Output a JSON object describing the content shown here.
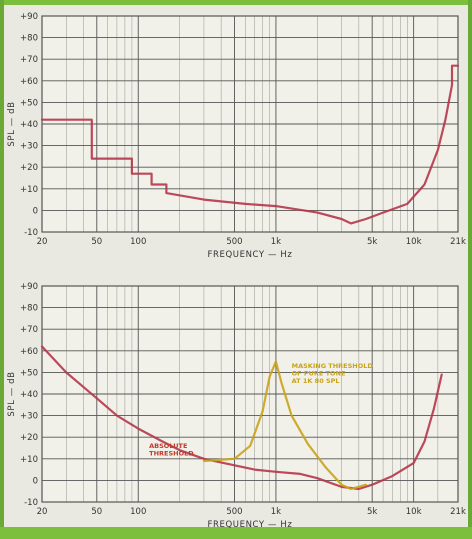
{
  "colors": {
    "grid": "#555555",
    "background": "#e9e9e2",
    "threshold_curve": "#b5364a",
    "masking_curve": "#c9a31a",
    "annotation": "#c9a31a",
    "label_red": "#c0392b",
    "frame_green": "#7bbf3c"
  },
  "chart_data": [
    {
      "type": "line",
      "xlabel": "FREQUENCY — Hz",
      "ylabel": "SPL — dB",
      "xscale": "log",
      "xlim": [
        20,
        21000
      ],
      "ylim": [
        -10,
        90
      ],
      "grid": true,
      "x_tick_labels": [
        {
          "value": 20,
          "label": "20"
        },
        {
          "value": 50,
          "label": "50"
        },
        {
          "value": 100,
          "label": "100"
        },
        {
          "value": 500,
          "label": "500"
        },
        {
          "value": 1000,
          "label": "1k"
        },
        {
          "value": 5000,
          "label": "5k"
        },
        {
          "value": 10000,
          "label": "10k"
        },
        {
          "value": 21000,
          "label": "21k"
        }
      ],
      "y_tick_labels": [
        {
          "value": 90,
          "label": "+90"
        },
        {
          "value": 80,
          "label": "+80"
        },
        {
          "value": 70,
          "label": "+70"
        },
        {
          "value": 60,
          "label": "+60"
        },
        {
          "value": 50,
          "label": "+50"
        },
        {
          "value": 40,
          "label": "+40"
        },
        {
          "value": 30,
          "label": "+30"
        },
        {
          "value": 20,
          "label": "+20"
        },
        {
          "value": 10,
          "label": "+10"
        },
        {
          "value": 0,
          "label": "0"
        },
        {
          "value": -10,
          "label": "-10"
        }
      ],
      "annotations": [],
      "series": [
        {
          "color": "#b5364a",
          "x": [
            20,
            46,
            46,
            90,
            90,
            125,
            125,
            160,
            160,
            300,
            600,
            1000,
            2000,
            3000,
            3500,
            4500,
            6000,
            9000,
            12000,
            15000,
            17000,
            19000,
            19000,
            21000
          ],
          "y": [
            42,
            42,
            24,
            24,
            17,
            17,
            12,
            12,
            8,
            5,
            3,
            2,
            -1,
            -4,
            -6,
            -4,
            -1,
            3,
            12,
            28,
            42,
            58,
            67,
            67
          ]
        }
      ]
    },
    {
      "type": "line",
      "xlabel": "FREQUENCY — Hz",
      "ylabel": "SPL — dB",
      "xscale": "log",
      "xlim": [
        20,
        21000
      ],
      "ylim": [
        -10,
        90
      ],
      "grid": true,
      "x_tick_labels": [
        {
          "value": 20,
          "label": "20"
        },
        {
          "value": 50,
          "label": "50"
        },
        {
          "value": 100,
          "label": "100"
        },
        {
          "value": 500,
          "label": "500"
        },
        {
          "value": 1000,
          "label": "1k"
        },
        {
          "value": 5000,
          "label": "5k"
        },
        {
          "value": 10000,
          "label": "10k"
        },
        {
          "value": 21000,
          "label": "21k"
        }
      ],
      "y_tick_labels": [
        {
          "value": 90,
          "label": "+90"
        },
        {
          "value": 80,
          "label": "+80"
        },
        {
          "value": 70,
          "label": "+70"
        },
        {
          "value": 60,
          "label": "+60"
        },
        {
          "value": 50,
          "label": "+50"
        },
        {
          "value": 40,
          "label": "+40"
        },
        {
          "value": 30,
          "label": "+30"
        },
        {
          "value": 20,
          "label": "+20"
        },
        {
          "value": 10,
          "label": "+10"
        },
        {
          "value": 0,
          "label": "0"
        },
        {
          "value": -10,
          "label": "-10"
        }
      ],
      "annotations": [
        {
          "lines": [
            "ABSOLUTE",
            "THRESHOLD"
          ],
          "color": "#c0392b",
          "x": 120,
          "y": 15
        },
        {
          "lines": [
            "MASKING THRESHOLD",
            "OF PURE TONE",
            "AT 1K 80 SPL"
          ],
          "color": "#c9a31a",
          "x": 1300,
          "y": 52
        }
      ],
      "series": [
        {
          "color": "#b5364a",
          "x": [
            20,
            30,
            50,
            70,
            100,
            150,
            200,
            300,
            500,
            700,
            1000,
            1500,
            2000,
            3000,
            4000,
            5000,
            7000,
            10000,
            12000,
            14000,
            16000
          ],
          "y": [
            62,
            50,
            38,
            30,
            24,
            18,
            14,
            10,
            7,
            5,
            4,
            3,
            1,
            -3,
            -4,
            -2,
            2,
            8,
            18,
            33,
            49
          ]
        },
        {
          "color": "#c9a31a",
          "x": [
            300,
            500,
            650,
            800,
            900,
            1000,
            1100,
            1300,
            1700,
            2300,
            3000,
            3500,
            4500
          ],
          "y": [
            9,
            10,
            16,
            32,
            48,
            55,
            45,
            30,
            17,
            6,
            -2,
            -4,
            -2
          ]
        }
      ]
    }
  ]
}
